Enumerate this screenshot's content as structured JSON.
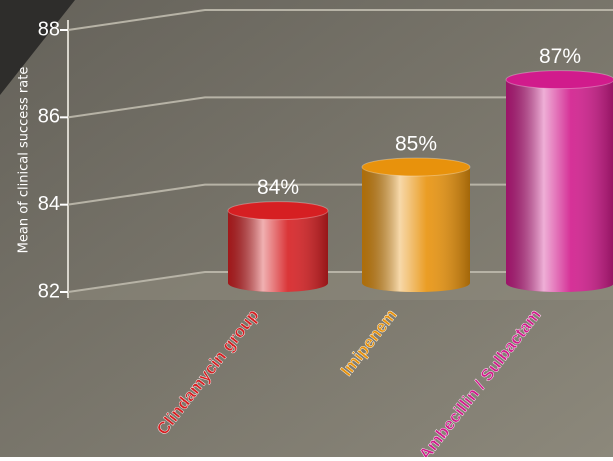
{
  "chart_data": {
    "type": "bar",
    "categories": [
      "Clindamycin group",
      "Imipenem",
      "Ambecillin / Sulbactam"
    ],
    "values": [
      84,
      85,
      87
    ],
    "value_labels": [
      "84%",
      "85%",
      "87%"
    ],
    "colors": [
      "#d61f22",
      "#e8920c",
      "#d11b8c"
    ],
    "y_label": "Mean of clinical success rate",
    "ylim": [
      82,
      88
    ],
    "yticks": [
      82,
      84,
      86,
      88
    ],
    "grid": true
  }
}
